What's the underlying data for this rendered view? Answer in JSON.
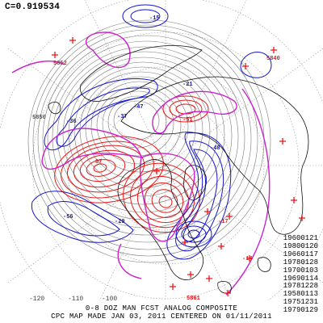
{
  "map": {
    "correlation_label": "C=0.919534",
    "contour_labels": [
      "5850"
    ],
    "longitude_labels": [
      "-120",
      "-110",
      "-100"
    ],
    "anomaly_labels": [
      "-15",
      "-51",
      "-47",
      "-56",
      "-36",
      "-48",
      "-37",
      "-29",
      "-21",
      "87",
      "-17",
      "-14"
    ],
    "pressure_labels": [
      "5852",
      "5840",
      "5861"
    ],
    "analog_years": [
      "19600121",
      "19800120",
      "19660117",
      "19780128",
      "19700103",
      "19690114",
      "19781228",
      "19580113",
      "19751231",
      "19790129"
    ],
    "footer_line1": "0-8 DOZ MAN FCST ANALOG COMPOSITE",
    "footer_line2": "CPC MAP MADE JAN 03, 2011 CENTERED ON 01/11/2011",
    "colors": {
      "positive": "#e81818",
      "negative": "#1414cc",
      "height": "#777777",
      "zero": "#cc22cc",
      "land": "#111111"
    }
  }
}
